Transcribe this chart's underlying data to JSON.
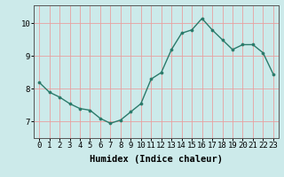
{
  "x": [
    0,
    1,
    2,
    3,
    4,
    5,
    6,
    7,
    8,
    9,
    10,
    11,
    12,
    13,
    14,
    15,
    16,
    17,
    18,
    19,
    20,
    21,
    22,
    23
  ],
  "y": [
    8.2,
    7.9,
    7.75,
    7.55,
    7.4,
    7.35,
    7.1,
    6.95,
    7.05,
    7.3,
    7.55,
    8.3,
    8.5,
    9.2,
    9.7,
    9.8,
    10.15,
    9.8,
    9.5,
    9.2,
    9.35,
    9.35,
    9.1,
    8.45
  ],
  "line_color": "#2a7a6a",
  "marker": "o",
  "marker_size": 2.2,
  "bg_color": "#cceaea",
  "grid_color": "#e8a0a0",
  "xlabel": "Humidex (Indice chaleur)",
  "xlabel_fontsize": 7.5,
  "yticks": [
    7,
    8,
    9,
    10
  ],
  "xticks": [
    0,
    1,
    2,
    3,
    4,
    5,
    6,
    7,
    8,
    9,
    10,
    11,
    12,
    13,
    14,
    15,
    16,
    17,
    18,
    19,
    20,
    21,
    22,
    23
  ],
  "ylim": [
    6.5,
    10.55
  ],
  "xlim": [
    -0.5,
    23.5
  ],
  "tick_fontsize": 6.5
}
